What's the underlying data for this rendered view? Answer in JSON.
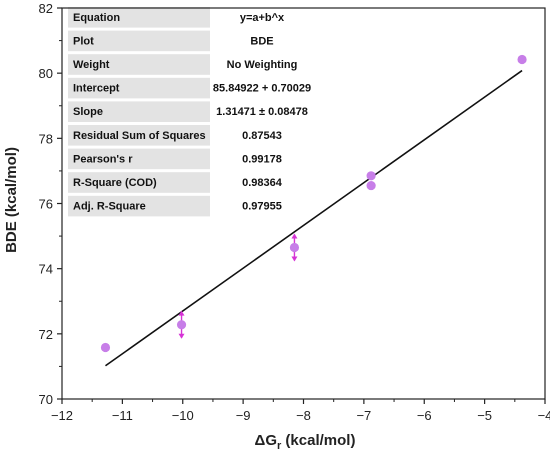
{
  "chart_data": {
    "type": "scatter",
    "xlabel_main": "ΔG",
    "xlabel_sub": "r",
    "xlabel_rest": " (kcal/mol)",
    "ylabel": "BDE (kcal/mol)",
    "xlim": [
      -12,
      -4
    ],
    "ylim": [
      70,
      82
    ],
    "x_ticks": [
      -12,
      -11,
      -10,
      -9,
      -8,
      -7,
      -6,
      -5,
      -4
    ],
    "y_ticks": [
      70,
      72,
      74,
      76,
      78,
      80,
      82
    ],
    "marker_color": "#c77ee8",
    "errorbar_color": "#d633d6",
    "line_color": "#111111",
    "points": [
      {
        "x": -11.28,
        "y": 71.58,
        "err": 0
      },
      {
        "x": -10.02,
        "y": 72.28,
        "err": 0.4
      },
      {
        "x": -8.15,
        "y": 74.65,
        "err": 0.4
      },
      {
        "x": -6.88,
        "y": 76.55,
        "err": 0
      },
      {
        "x": -6.88,
        "y": 76.85,
        "err": 0
      },
      {
        "x": -4.38,
        "y": 80.42,
        "err": 0
      }
    ],
    "fit_line": {
      "x": [
        -11.28,
        -4.38
      ],
      "y": [
        71.02,
        80.08
      ]
    },
    "stats_table": [
      {
        "key": "Equation",
        "value": "y=a+b^x"
      },
      {
        "key": "Plot",
        "value": "BDE"
      },
      {
        "key": "Weight",
        "value": "No Weighting"
      },
      {
        "key": "Intercept",
        "value": "85.84922 + 0.70029"
      },
      {
        "key": "Slope",
        "value": "1.31471 ± 0.08478"
      },
      {
        "key": "Residual Sum of Squares",
        "value": "0.87543"
      },
      {
        "key": "Pearson's r",
        "value": "0.99178"
      },
      {
        "key": "R-Square (COD)",
        "value": "0.98364"
      },
      {
        "key": "Adj. R-Square",
        "value": "0.97955"
      }
    ]
  }
}
